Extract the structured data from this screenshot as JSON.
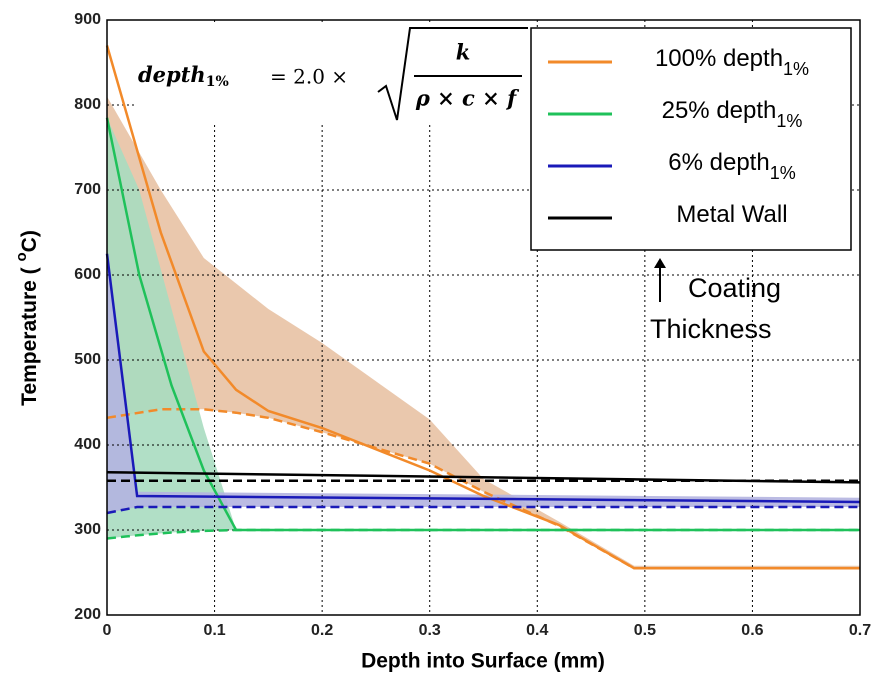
{
  "chart_data": {
    "type": "line",
    "xlabel": "Depth into Surface (mm)",
    "ylabel_parts": [
      "Temperature ( ",
      "o",
      "C)"
    ],
    "xlim": [
      0,
      0.7
    ],
    "xticks": [
      0,
      0.1,
      0.2,
      0.3,
      0.4,
      0.5,
      0.6,
      0.7
    ],
    "ylim": [
      200,
      900
    ],
    "yticks": [
      200,
      300,
      400,
      500,
      600,
      700,
      800,
      900
    ],
    "grid": true,
    "legend": "upper right",
    "formula": {
      "lhs": "depth",
      "lhs_sub": "1%",
      "op": "= 2.0 ×",
      "num": "k",
      "den": "ρ × c × f"
    },
    "annotation": [
      "Coating",
      "Thickness"
    ],
    "series": [
      {
        "name": "100% depth",
        "name_sub": "1%",
        "color": "#f28a2a",
        "band_color": "#e8c2a4",
        "x": [
          0,
          0.05,
          0.09,
          0.12,
          0.15,
          0.2,
          0.3,
          0.35,
          0.42,
          0.49,
          0.7
        ],
        "values": [
          870,
          650,
          510,
          465,
          440,
          420,
          370,
          340,
          306,
          255,
          255
        ],
        "dashed_values": [
          432,
          442,
          442,
          438,
          432,
          415,
          378,
          345,
          305,
          255,
          255
        ],
        "band_upper": [
          810,
          700,
          620,
          590,
          560,
          520,
          430,
          360,
          310,
          258,
          258
        ]
      },
      {
        "name": "25% depth",
        "name_sub": "1%",
        "color": "#1fc15a",
        "band_color": "#a8dcc0",
        "x": [
          0,
          0.03,
          0.06,
          0.09,
          0.12,
          0.7
        ],
        "values": [
          785,
          600,
          470,
          370,
          300,
          300
        ],
        "dashed_values": [
          290,
          294,
          297,
          299,
          300,
          300
        ],
        "band_upper": [
          785,
          700,
          560,
          420,
          300,
          300
        ]
      },
      {
        "name": "6% depth",
        "name_sub": "1%",
        "color": "#1a1ab8",
        "band_color": "#b4b4e0",
        "x": [
          0,
          0.028,
          0.7
        ],
        "values": [
          625,
          340,
          333
        ],
        "dashed_values": [
          320,
          327,
          327
        ],
        "band_upper": [
          625,
          345,
          338
        ]
      },
      {
        "name": "Metal Wall",
        "color": "#000000",
        "x": [
          0,
          0.7
        ],
        "values": [
          368,
          356
        ],
        "dashed_values": [
          358,
          358
        ]
      }
    ]
  }
}
